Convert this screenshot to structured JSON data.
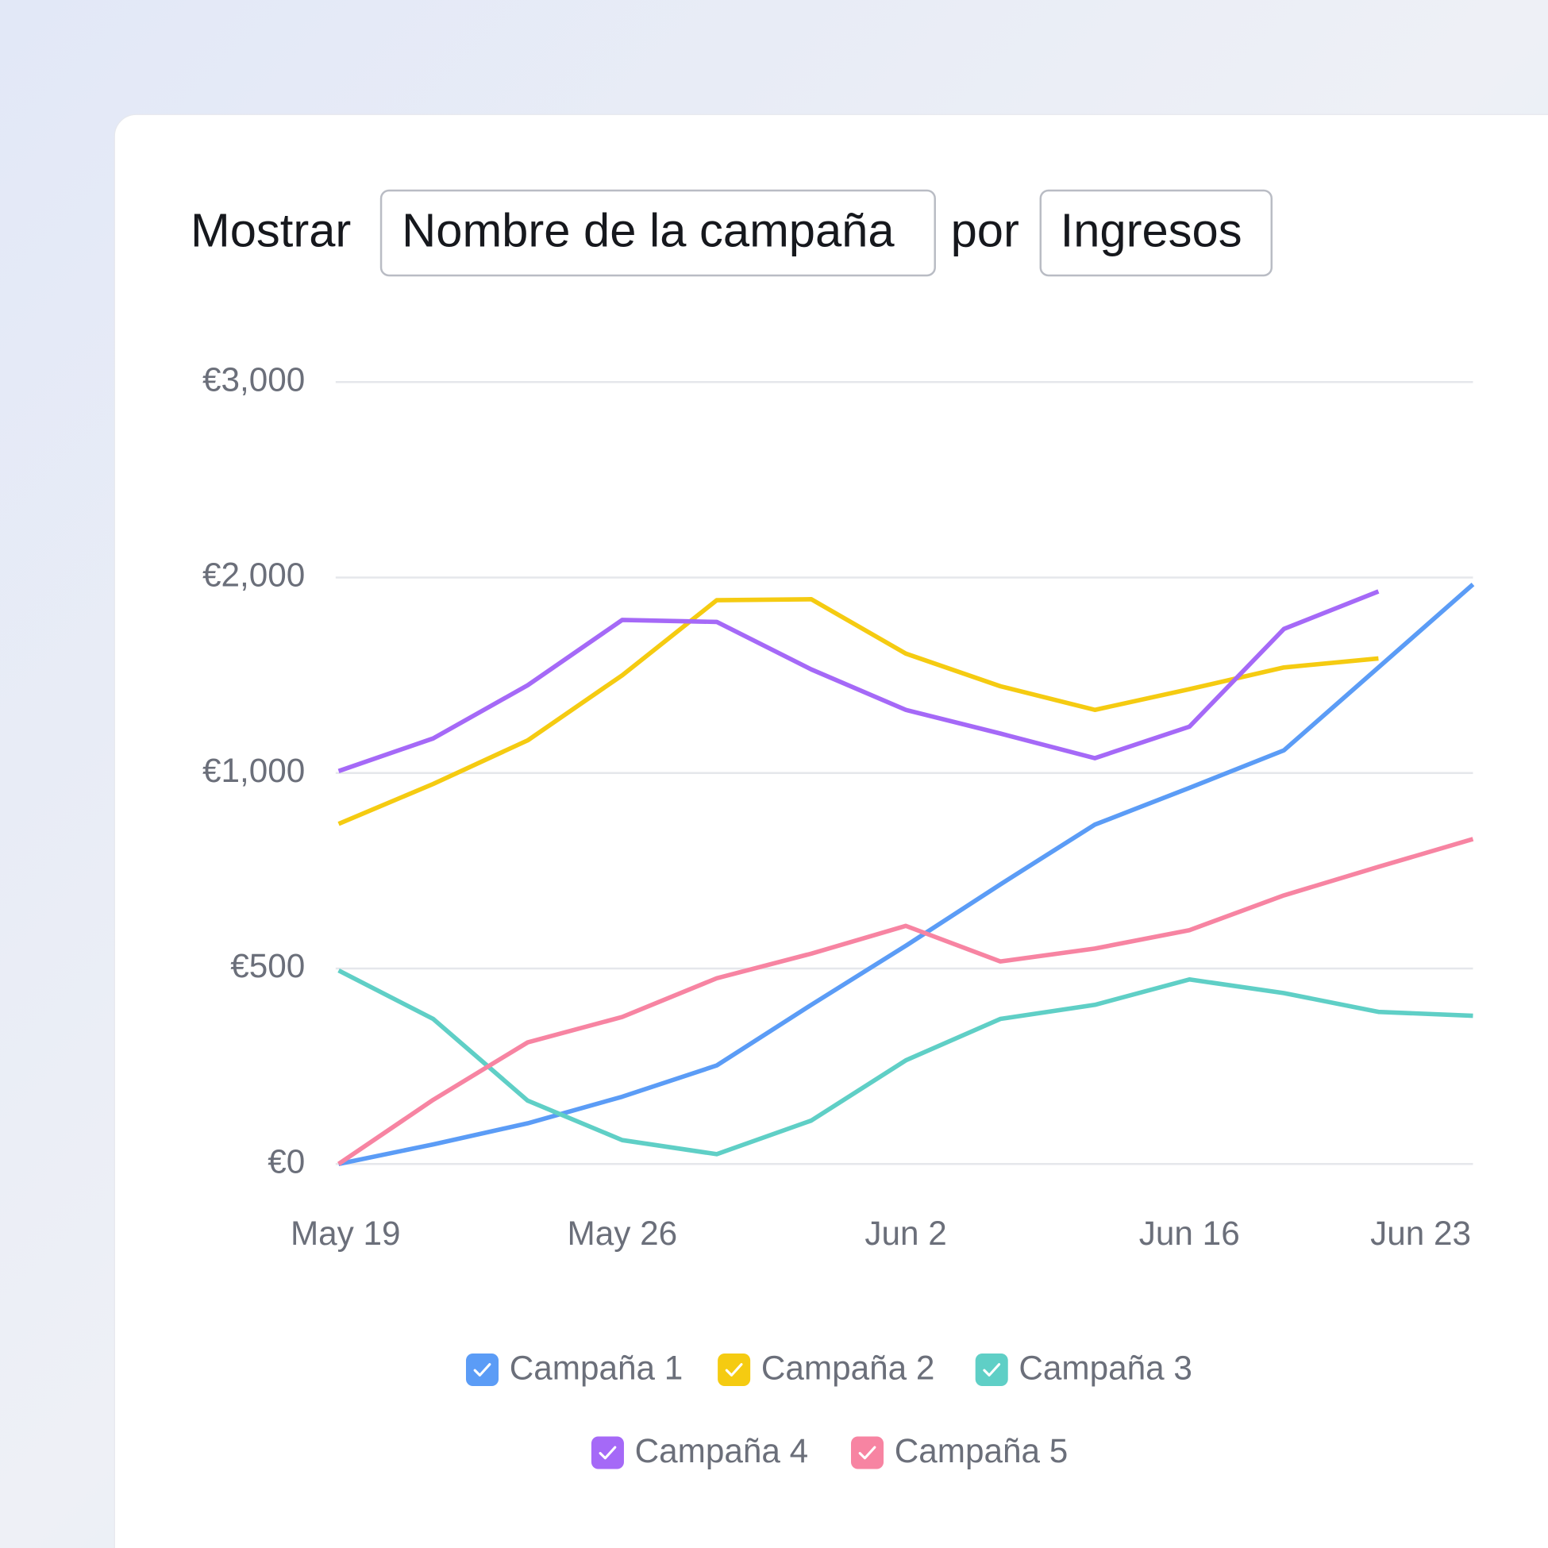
{
  "header": {
    "label": "Mostrar",
    "field": "Nombre de la campaña",
    "connector": "por",
    "metric": "Ingresos"
  },
  "chart_data": {
    "type": "line",
    "categories": [
      "May 19",
      null,
      null,
      "May 26",
      null,
      null,
      "Jun 2",
      null,
      null,
      "Jun 16",
      null,
      null,
      "Jun 23"
    ],
    "ylim": [
      0,
      3000
    ],
    "yticks": [
      {
        "value": 0,
        "label": "€0"
      },
      {
        "value": 500,
        "label": "€500"
      },
      {
        "value": 1000,
        "label": "€1,000"
      },
      {
        "value": 2000,
        "label": "€2,000"
      },
      {
        "value": 3000,
        "label": "€3,000"
      }
    ],
    "grid": true,
    "series": [
      {
        "name": "Campaña 1",
        "color": "#5b9cf6",
        "values": [
          0,
          50,
          104,
          172,
          252,
          407,
          558,
          715,
          868,
          962,
          1116,
          1540,
          1965
        ]
      },
      {
        "name": "Campaña 2",
        "color": "#f5cb11",
        "values": [
          870,
          972,
          1167,
          1500,
          1884,
          1889,
          1611,
          1444,
          1323,
          1429,
          1540,
          1586,
          null
        ]
      },
      {
        "name": "Campaña 3",
        "color": "#5fcfc6",
        "values": [
          495,
          371,
          162,
          61,
          25,
          111,
          265,
          371,
          407,
          472,
          437,
          389,
          379
        ]
      },
      {
        "name": "Campaña 4",
        "color": "#a569f7",
        "values": [
          1010,
          1177,
          1449,
          1783,
          1773,
          1530,
          1323,
          1202,
          1076,
          1237,
          1737,
          1929,
          null
        ]
      },
      {
        "name": "Campaña 5",
        "color": "#f784a2",
        "values": [
          0,
          164,
          311,
          376,
          475,
          538,
          609,
          518,
          551,
          598,
          687,
          760,
          831
        ]
      }
    ]
  }
}
